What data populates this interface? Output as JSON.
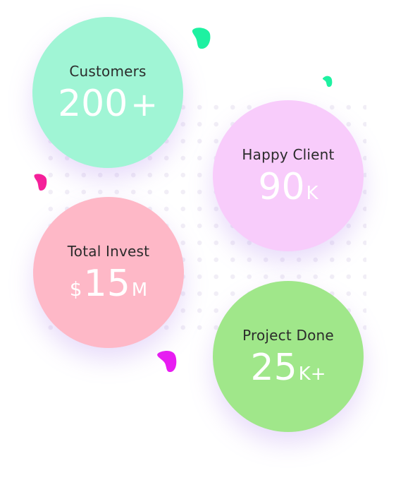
{
  "stats": [
    {
      "label": "Customers",
      "prefix": "",
      "value": "200",
      "suffix": "+",
      "color": "#a0f5d5"
    },
    {
      "label": "Happy Client",
      "prefix": "",
      "value": "90",
      "suffix": "K",
      "color": "#f8ccfb"
    },
    {
      "label": "Total Invest",
      "prefix": "$",
      "value": "15",
      "suffix": "M",
      "color": "#feb8c7"
    },
    {
      "label": "Project Done",
      "prefix": "",
      "value": "25",
      "suffix": "K+",
      "color": "#a0e78a"
    }
  ],
  "decor": {
    "green": "#1ef1a1",
    "pink": "#f5209a",
    "magenta": "#e81cf2"
  }
}
